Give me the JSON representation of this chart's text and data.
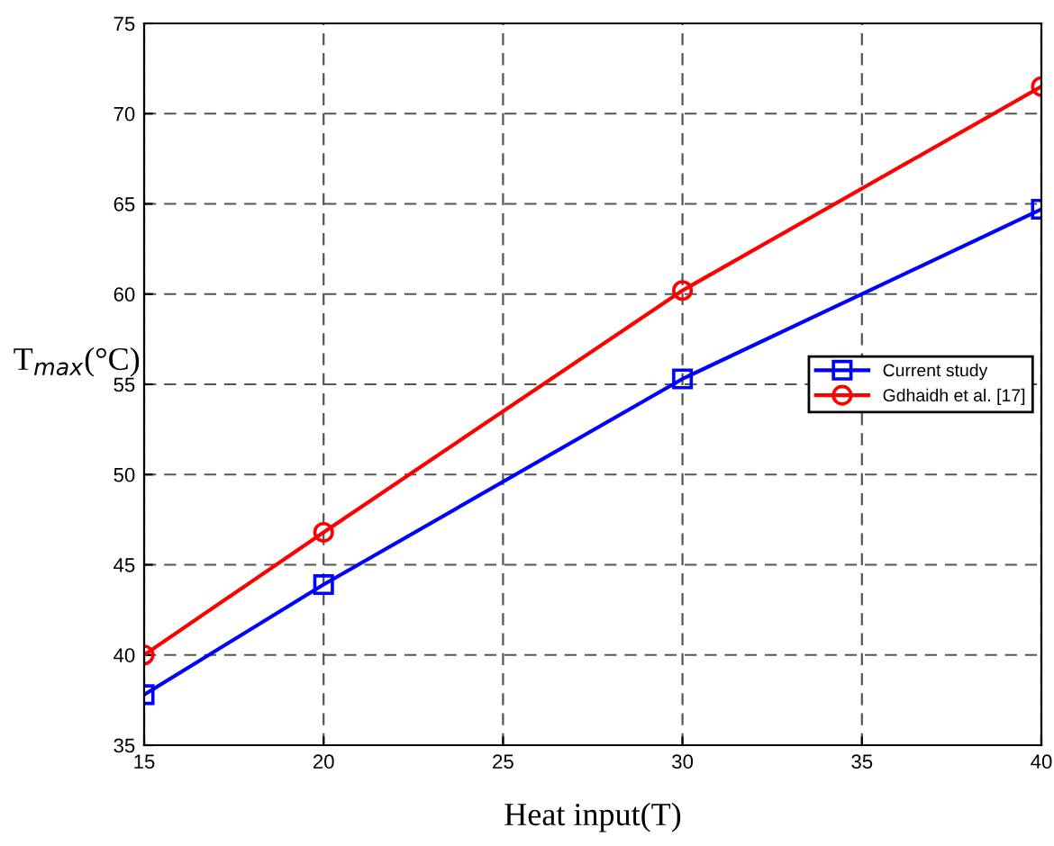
{
  "chart_data": {
    "type": "line",
    "xlabel": "Heat input(T)",
    "ylabel": "T$_{max}$(°C)",
    "x": [
      15,
      20,
      30,
      40
    ],
    "series": [
      {
        "name": "Current study",
        "color": "#0000ff",
        "marker": "square",
        "values": [
          37.8,
          43.9,
          55.3,
          64.7
        ]
      },
      {
        "name": "Gdhaidh et al. [17]",
        "color": "#ff0000",
        "marker": "circle",
        "values": [
          40.0,
          46.8,
          60.2,
          71.5
        ]
      }
    ],
    "xlim": [
      15,
      40
    ],
    "xticks": [
      15,
      20,
      25,
      30,
      35,
      40
    ],
    "ylim": [
      35,
      75
    ],
    "yticks": [
      35,
      40,
      45,
      50,
      55,
      60,
      65,
      70,
      75
    ],
    "grid": true,
    "legend": "right",
    "line_style": "solid"
  }
}
